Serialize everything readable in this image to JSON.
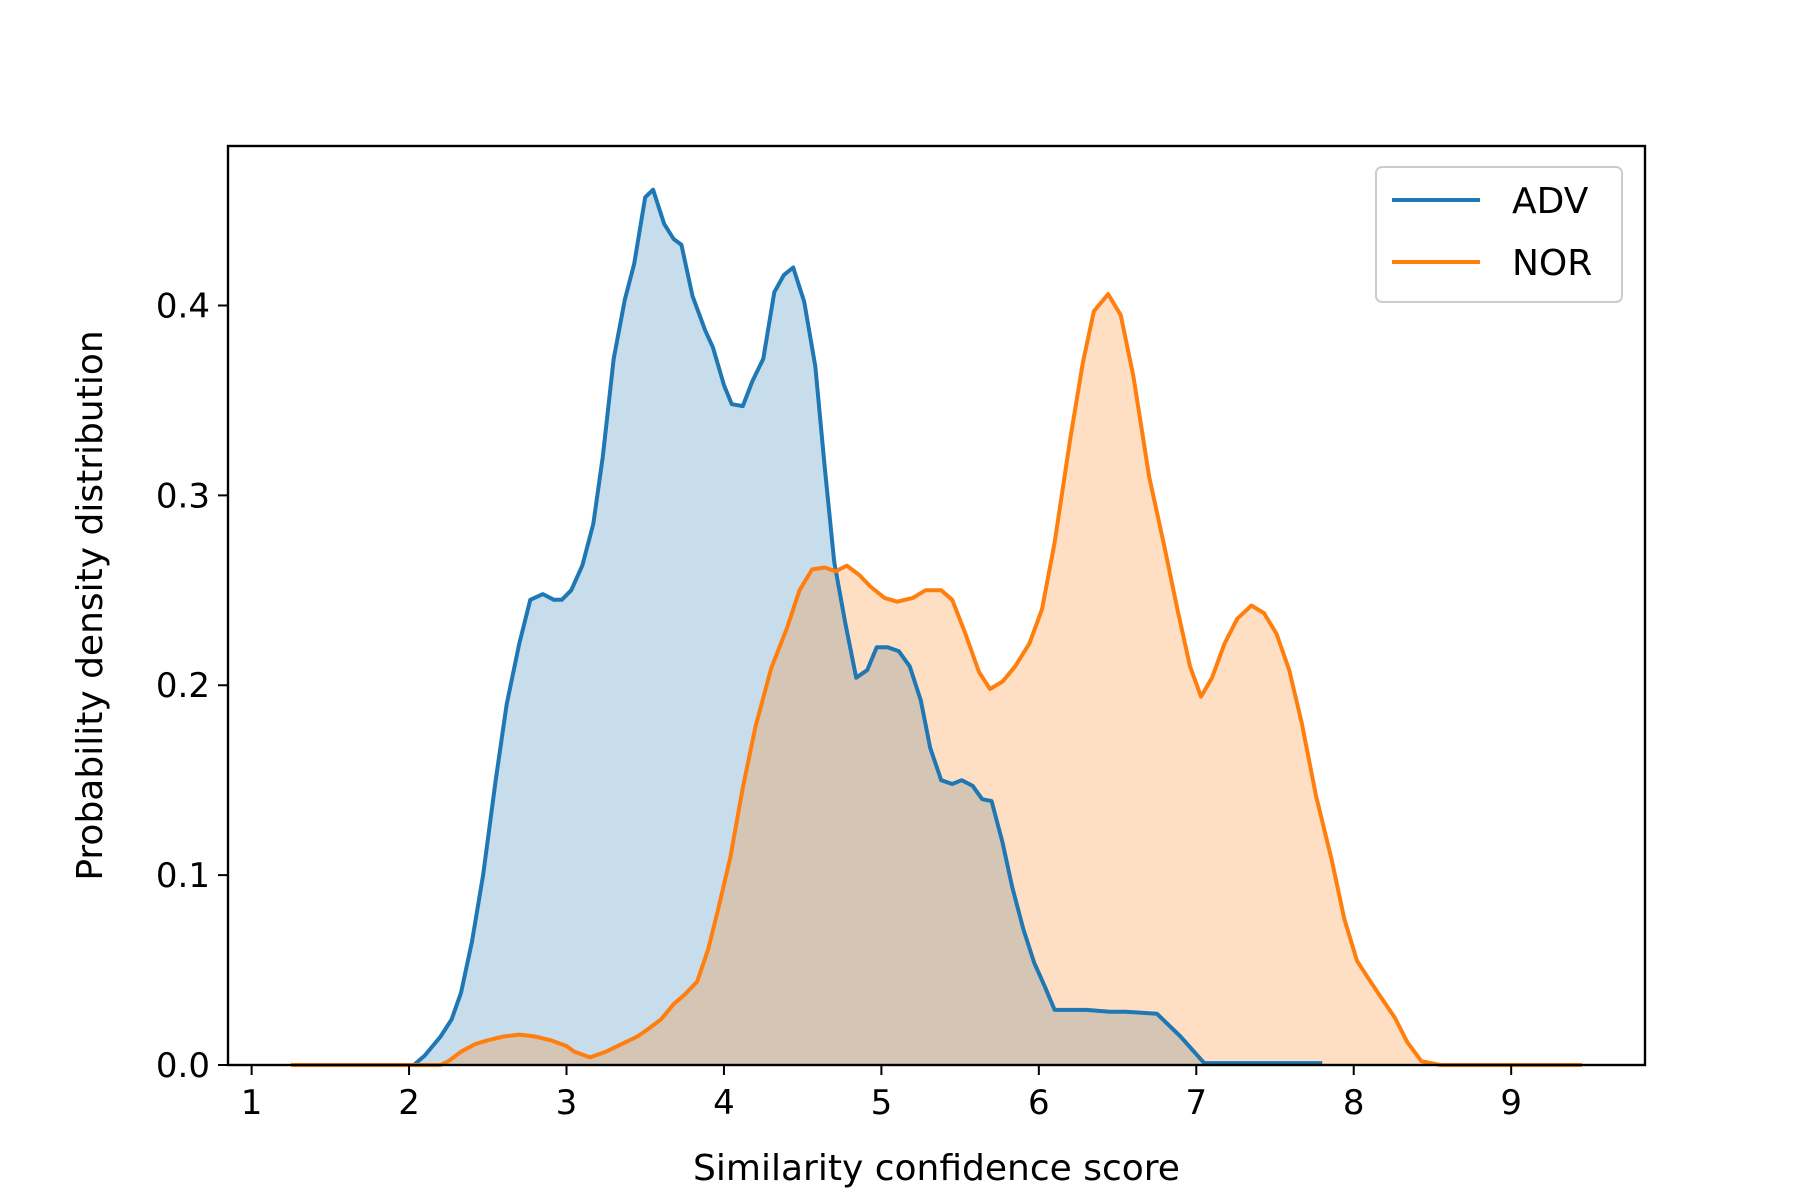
{
  "chart_data": {
    "type": "area",
    "title": "",
    "xlabel": "Similarity confidence score",
    "ylabel": "Probability density distribution",
    "xlim": [
      0.85,
      9.85
    ],
    "ylim": [
      0,
      0.484
    ],
    "xticks": [
      "1",
      "2",
      "3",
      "4",
      "5",
      "6",
      "7",
      "8",
      "9"
    ],
    "yticks": [
      "0.0",
      "0.1",
      "0.2",
      "0.3",
      "0.4"
    ],
    "legend": {
      "position": "top-right",
      "entries": [
        "ADV",
        "NOR"
      ]
    },
    "grid": false,
    "series": [
      {
        "name": "ADV",
        "color": "#1f77b4",
        "fill": "#c6dbed",
        "points": [
          [
            2.03,
            0.0
          ],
          [
            2.1,
            0.005
          ],
          [
            2.2,
            0.015
          ],
          [
            2.27,
            0.024
          ],
          [
            2.33,
            0.038
          ],
          [
            2.4,
            0.065
          ],
          [
            2.47,
            0.1
          ],
          [
            2.55,
            0.15
          ],
          [
            2.62,
            0.19
          ],
          [
            2.7,
            0.222
          ],
          [
            2.77,
            0.245
          ],
          [
            2.85,
            0.248
          ],
          [
            2.92,
            0.245
          ],
          [
            2.97,
            0.245
          ],
          [
            3.03,
            0.25
          ],
          [
            3.1,
            0.263
          ],
          [
            3.17,
            0.285
          ],
          [
            3.23,
            0.32
          ],
          [
            3.3,
            0.372
          ],
          [
            3.37,
            0.403
          ],
          [
            3.43,
            0.422
          ],
          [
            3.5,
            0.457
          ],
          [
            3.55,
            0.461
          ],
          [
            3.62,
            0.443
          ],
          [
            3.68,
            0.435
          ],
          [
            3.73,
            0.432
          ],
          [
            3.8,
            0.405
          ],
          [
            3.88,
            0.387
          ],
          [
            3.93,
            0.378
          ],
          [
            4.0,
            0.358
          ],
          [
            4.05,
            0.348
          ],
          [
            4.12,
            0.347
          ],
          [
            4.18,
            0.36
          ],
          [
            4.25,
            0.372
          ],
          [
            4.32,
            0.407
          ],
          [
            4.38,
            0.416
          ],
          [
            4.44,
            0.42
          ],
          [
            4.51,
            0.402
          ],
          [
            4.58,
            0.368
          ],
          [
            4.64,
            0.315
          ],
          [
            4.7,
            0.265
          ],
          [
            4.77,
            0.233
          ],
          [
            4.84,
            0.204
          ],
          [
            4.91,
            0.208
          ],
          [
            4.97,
            0.22
          ],
          [
            5.04,
            0.22
          ],
          [
            5.11,
            0.218
          ],
          [
            5.18,
            0.21
          ],
          [
            5.25,
            0.192
          ],
          [
            5.31,
            0.167
          ],
          [
            5.38,
            0.15
          ],
          [
            5.45,
            0.148
          ],
          [
            5.51,
            0.15
          ],
          [
            5.58,
            0.147
          ],
          [
            5.64,
            0.14
          ],
          [
            5.7,
            0.139
          ],
          [
            5.77,
            0.117
          ],
          [
            5.83,
            0.094
          ],
          [
            5.9,
            0.072
          ],
          [
            5.97,
            0.054
          ],
          [
            6.04,
            0.041
          ],
          [
            6.1,
            0.029
          ],
          [
            6.3,
            0.029
          ],
          [
            6.45,
            0.028
          ],
          [
            6.55,
            0.028
          ],
          [
            6.75,
            0.027
          ],
          [
            6.9,
            0.015
          ],
          [
            7.05,
            0.001
          ],
          [
            7.3,
            0.001
          ],
          [
            7.8,
            0.001
          ]
        ]
      },
      {
        "name": "NOR",
        "color": "#ff7f0e",
        "fill": "#fddbbd",
        "points": [
          [
            1.25,
            0.0
          ],
          [
            2.2,
            0.0
          ],
          [
            2.25,
            0.002
          ],
          [
            2.33,
            0.007
          ],
          [
            2.42,
            0.011
          ],
          [
            2.5,
            0.013
          ],
          [
            2.6,
            0.015
          ],
          [
            2.7,
            0.016
          ],
          [
            2.8,
            0.015
          ],
          [
            2.9,
            0.013
          ],
          [
            3.0,
            0.01
          ],
          [
            3.05,
            0.007
          ],
          [
            3.15,
            0.004
          ],
          [
            3.25,
            0.007
          ],
          [
            3.35,
            0.011
          ],
          [
            3.45,
            0.015
          ],
          [
            3.52,
            0.019
          ],
          [
            3.6,
            0.024
          ],
          [
            3.68,
            0.032
          ],
          [
            3.75,
            0.037
          ],
          [
            3.83,
            0.044
          ],
          [
            3.9,
            0.061
          ],
          [
            3.96,
            0.081
          ],
          [
            4.04,
            0.109
          ],
          [
            4.12,
            0.146
          ],
          [
            4.2,
            0.178
          ],
          [
            4.3,
            0.209
          ],
          [
            4.4,
            0.23
          ],
          [
            4.48,
            0.25
          ],
          [
            4.56,
            0.261
          ],
          [
            4.64,
            0.262
          ],
          [
            4.71,
            0.26
          ],
          [
            4.78,
            0.263
          ],
          [
            4.86,
            0.258
          ],
          [
            4.93,
            0.252
          ],
          [
            5.02,
            0.246
          ],
          [
            5.1,
            0.244
          ],
          [
            5.2,
            0.246
          ],
          [
            5.28,
            0.25
          ],
          [
            5.38,
            0.25
          ],
          [
            5.45,
            0.245
          ],
          [
            5.53,
            0.228
          ],
          [
            5.62,
            0.207
          ],
          [
            5.69,
            0.198
          ],
          [
            5.77,
            0.202
          ],
          [
            5.85,
            0.21
          ],
          [
            5.94,
            0.222
          ],
          [
            6.02,
            0.24
          ],
          [
            6.1,
            0.275
          ],
          [
            6.2,
            0.33
          ],
          [
            6.28,
            0.37
          ],
          [
            6.35,
            0.397
          ],
          [
            6.44,
            0.406
          ],
          [
            6.52,
            0.395
          ],
          [
            6.6,
            0.363
          ],
          [
            6.7,
            0.31
          ],
          [
            6.8,
            0.272
          ],
          [
            6.88,
            0.24
          ],
          [
            6.96,
            0.21
          ],
          [
            7.03,
            0.194
          ],
          [
            7.1,
            0.204
          ],
          [
            7.18,
            0.222
          ],
          [
            7.26,
            0.235
          ],
          [
            7.35,
            0.242
          ],
          [
            7.43,
            0.238
          ],
          [
            7.51,
            0.227
          ],
          [
            7.59,
            0.208
          ],
          [
            7.67,
            0.18
          ],
          [
            7.76,
            0.142
          ],
          [
            7.86,
            0.108
          ],
          [
            7.94,
            0.077
          ],
          [
            8.02,
            0.055
          ],
          [
            8.09,
            0.046
          ],
          [
            8.17,
            0.036
          ],
          [
            8.26,
            0.025
          ],
          [
            8.34,
            0.012
          ],
          [
            8.43,
            0.002
          ],
          [
            8.55,
            0.0
          ],
          [
            9.45,
            0.0
          ]
        ]
      }
    ]
  }
}
